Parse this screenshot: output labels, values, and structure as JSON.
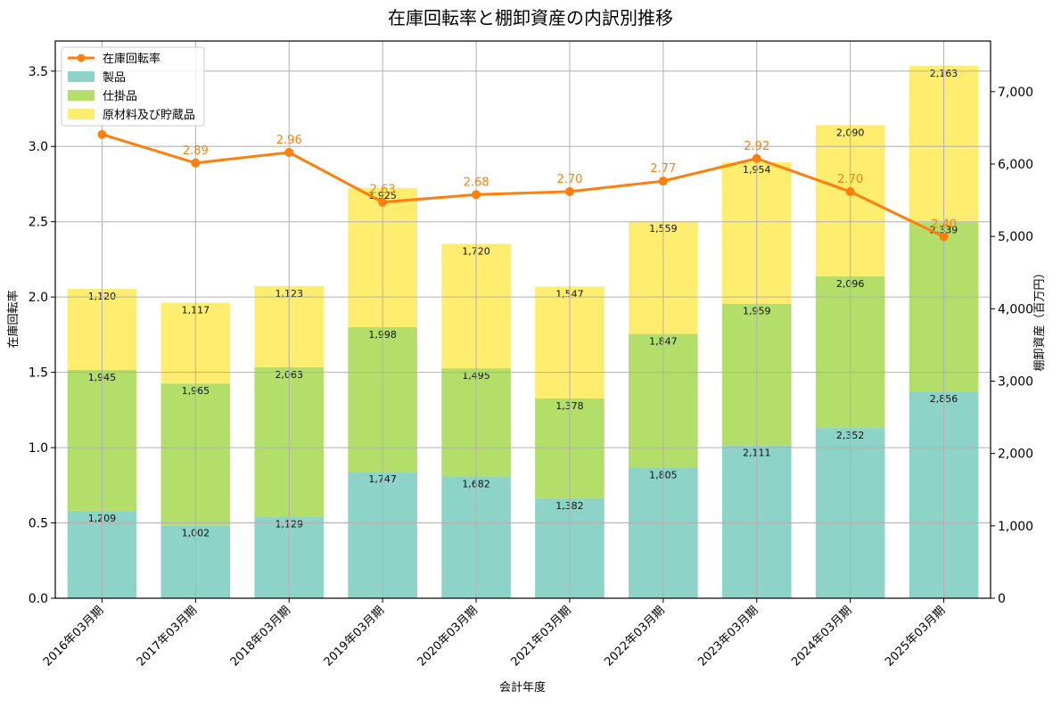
{
  "chart_data": {
    "type": "bar",
    "title": "在庫回転率と棚卸資産の内訳別推移",
    "xlabel": "会計年度",
    "ylabel_left": "在庫回転率",
    "ylabel_right": "棚卸資産（百万円）",
    "ylim_left": [
      0,
      3.7
    ],
    "ylim_right": [
      0,
      7700
    ],
    "yticks_left": [
      "0.0",
      "0.5",
      "1.0",
      "1.5",
      "2.0",
      "2.5",
      "3.0",
      "3.5"
    ],
    "yticks_right": [
      "0",
      "1,000",
      "2,000",
      "3,000",
      "4,000",
      "5,000",
      "6,000",
      "7,000"
    ],
    "grid": true,
    "legend_position": "top-left",
    "categories": [
      "2016年03月期",
      "2017年03月期",
      "2018年03月期",
      "2019年03月期",
      "2020年03月期",
      "2021年03月期",
      "2022年03月期",
      "2023年03月期",
      "2024年03月期",
      "2025年03月期"
    ],
    "stacked_bar_series": [
      {
        "name": "製品",
        "color": "#8dd3c7",
        "values": [
          1209,
          1002,
          1129,
          1747,
          1682,
          1382,
          1805,
          2111,
          2352,
          2856
        ]
      },
      {
        "name": "仕掛品",
        "color": "#b3de69",
        "values": [
          1945,
          1965,
          2063,
          1998,
          1495,
          1378,
          1847,
          1959,
          2096,
          2339
        ]
      },
      {
        "name": "原材料及び貯蔵品",
        "color": "#ffed6f",
        "values": [
          1120,
          1117,
          1123,
          1925,
          1720,
          1547,
          1559,
          1954,
          2090,
          2163
        ]
      }
    ],
    "line_series": {
      "name": "在庫回転率",
      "color": "#ff7f0e",
      "values": [
        3.08,
        2.89,
        2.96,
        2.63,
        2.68,
        2.7,
        2.77,
        2.92,
        2.7,
        2.4
      ],
      "labels": [
        "",
        "2.89",
        "2.96",
        "2.63",
        "2.68",
        "2.70",
        "2.77",
        "2.92",
        "2.70",
        "2.40"
      ]
    }
  }
}
